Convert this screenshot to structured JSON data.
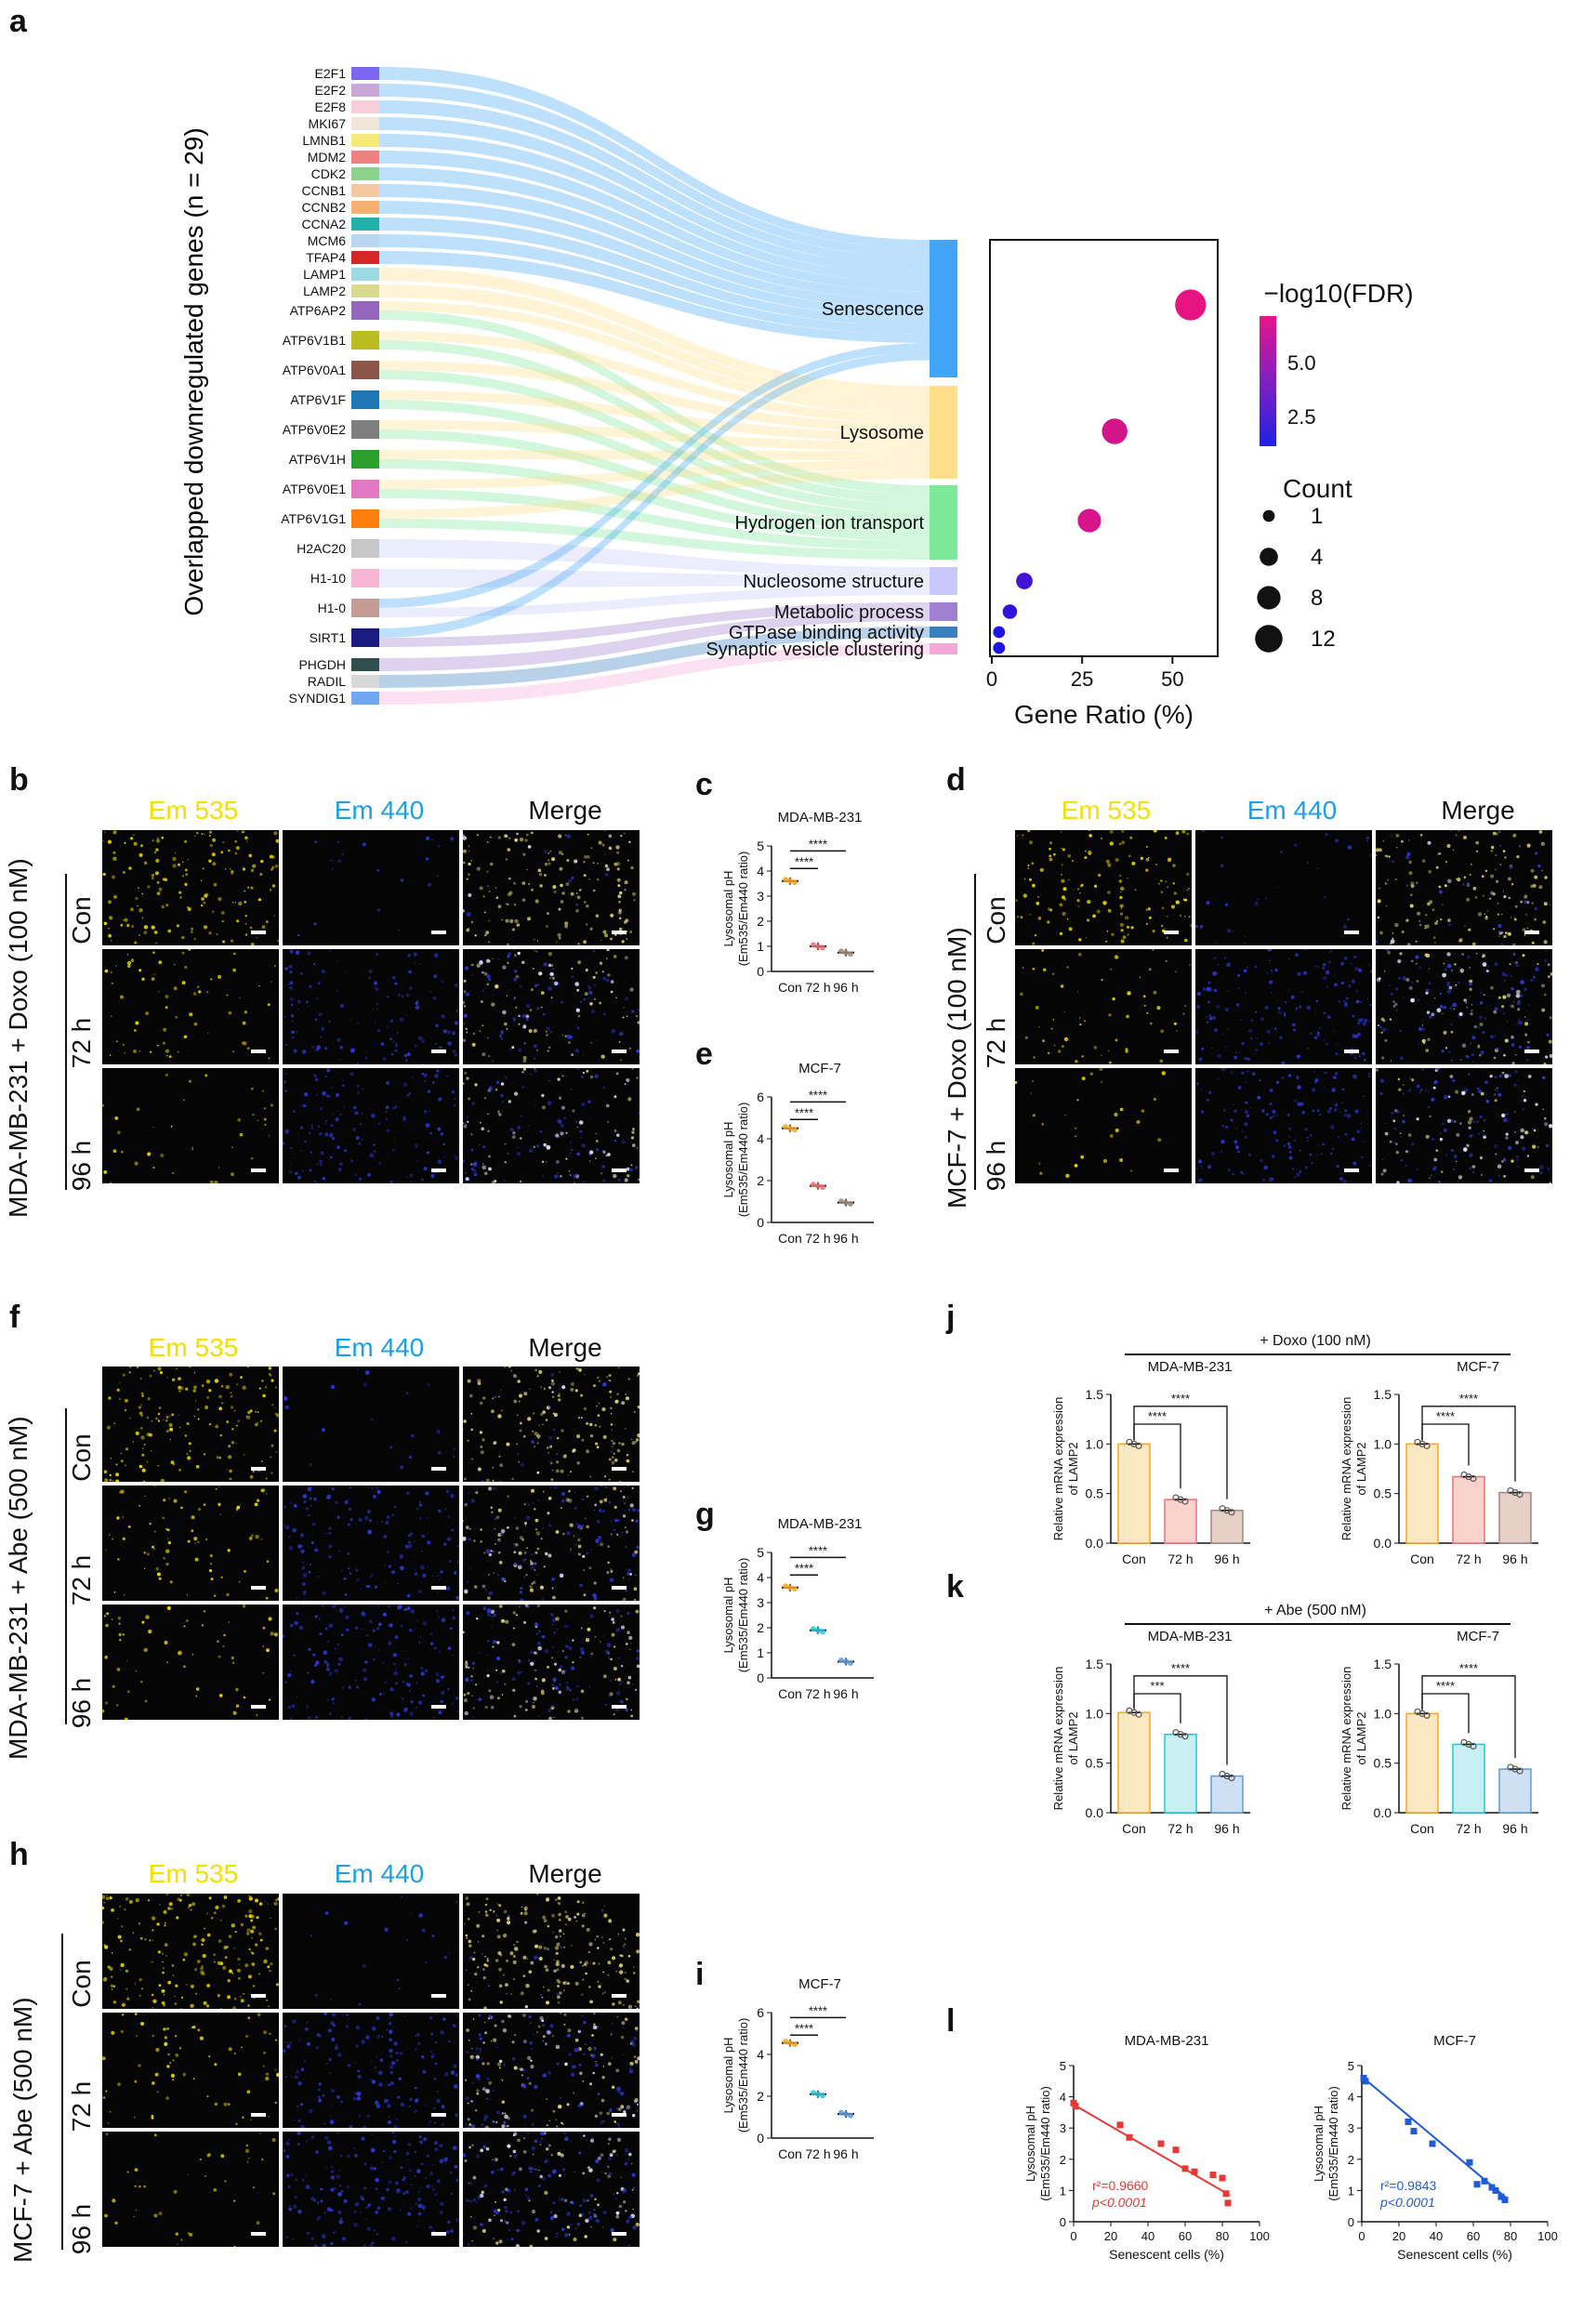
{
  "panel_labels": {
    "a": "a",
    "b": "b",
    "c": "c",
    "d": "d",
    "e": "e",
    "f": "f",
    "g": "g",
    "h": "h",
    "i": "i",
    "j": "j",
    "k": "k",
    "l": "l"
  },
  "channels": [
    "Em 535",
    "Em 440",
    "Merge"
  ],
  "rows": [
    "Con",
    "72 h",
    "96 h"
  ],
  "panel_a": {
    "ylabel": "Overlapped downregulated genes (n = 29)",
    "genes": [
      "E2F1",
      "E2F2",
      "E2F8",
      "MKI67",
      "LMNB1",
      "MDM2",
      "CDK2",
      "CCNB1",
      "CCNB2",
      "CCNA2",
      "MCM6",
      "TFAP4",
      "LAMP1",
      "LAMP2",
      "ATP6AP2",
      "ATP6V1B1",
      "ATP6V0A1",
      "ATP6V1F",
      "ATP6V0E2",
      "ATP6V1H",
      "ATP6V0E1",
      "ATP6V1G1",
      "H2AC20",
      "H1-10",
      "H1-0",
      "SIRT1",
      "PHGDH",
      "RADIL",
      "SYNDIG1"
    ],
    "gene_colors": [
      "#7b68ee",
      "#c9a8d8",
      "#f6cfd8",
      "#f2e6d8",
      "#f6e87a",
      "#f08080",
      "#8ed18c",
      "#f6c8a0",
      "#f6b070",
      "#20b2aa",
      "#b8d8f0",
      "#d62728",
      "#9edae5",
      "#dbdb8d",
      "#9467bd",
      "#bcbd22",
      "#8c564b",
      "#1f77b4",
      "#7f7f7f",
      "#2ca02c",
      "#e377c2",
      "#ff7f0e",
      "#c7c7c7",
      "#f7b6d2",
      "#c49c94",
      "#1a1a80",
      "#2f4f4f",
      "#d8d8d8",
      "#6fa8f0"
    ],
    "pathways": [
      "Senescence",
      "Lysosome",
      "Hydrogen ion transport",
      "Nucleosome structure",
      "Metabolic process",
      "GTPase binding activity",
      "Synaptic vesicle clustering"
    ],
    "pathway_colors": [
      "#42a5f5",
      "#ffe08a",
      "#7ee89a",
      "#c8c8ff",
      "#a080d0",
      "#3a7fc0",
      "#f4a8d8"
    ]
  },
  "chart_data": [
    {
      "type": "scatter",
      "panel": "a-dotplot",
      "xlabel": "Gene Ratio (%)",
      "xticks": [
        0,
        25,
        50
      ],
      "xlim": [
        0,
        62
      ],
      "categories": [
        "Senescence",
        "Lysosome",
        "Hydrogen ion transport",
        "Nucleosome structure",
        "Metabolic process",
        "GTPase binding activity",
        "Synaptic vesicle clustering"
      ],
      "gene_ratio": [
        55,
        34,
        27,
        9,
        5,
        2,
        2
      ],
      "count": [
        16,
        10,
        8,
        3,
        2,
        1,
        1
      ],
      "neg_log10_fdr": [
        7.0,
        6.5,
        6.6,
        2.5,
        2.0,
        1.5,
        1.5
      ],
      "color_title": "−log10(FDR)",
      "color_ticks": [
        "5.0",
        "2.5"
      ],
      "size_title": "Count",
      "size_legend": [
        "1",
        "4",
        "8",
        "12"
      ]
    },
    {
      "type": "scatter-dot",
      "panel": "c",
      "title": "MDA-MB-231",
      "ylabel": "Lysosomal pH\n(Em535/Em440 ratio)",
      "ylim": [
        0,
        5
      ],
      "yticks": [
        0,
        1,
        2,
        3,
        4,
        5
      ],
      "categories": [
        "Con",
        "72 h",
        "96 h"
      ],
      "means": [
        3.6,
        1.0,
        0.75
      ],
      "sig": [
        {
          "from": 0,
          "to": 1,
          "label": "****"
        },
        {
          "from": 0,
          "to": 2,
          "label": "****"
        }
      ],
      "colors": [
        "#f5a623",
        "#e57373",
        "#a1887f"
      ]
    },
    {
      "type": "scatter-dot",
      "panel": "e",
      "title": "MCF-7",
      "ylabel": "Lysosomal pH\n(Em535/Em440 ratio)",
      "ylim": [
        0,
        6
      ],
      "yticks": [
        0,
        2,
        4,
        6
      ],
      "categories": [
        "Con",
        "72 h",
        "96 h"
      ],
      "means": [
        4.5,
        1.75,
        0.95
      ],
      "sig": [
        {
          "from": 0,
          "to": 1,
          "label": "****"
        },
        {
          "from": 0,
          "to": 2,
          "label": "****"
        }
      ],
      "colors": [
        "#f5a623",
        "#e57373",
        "#a1887f"
      ]
    },
    {
      "type": "scatter-dot",
      "panel": "g",
      "title": "MDA-MB-231",
      "ylabel": "Lysosomal pH\n(Em535/Em440 ratio)",
      "ylim": [
        0,
        5
      ],
      "yticks": [
        0,
        1,
        2,
        3,
        4,
        5
      ],
      "categories": [
        "Con",
        "72 h",
        "96 h"
      ],
      "means": [
        3.6,
        1.9,
        0.65
      ],
      "sig": [
        {
          "from": 0,
          "to": 1,
          "label": "****"
        },
        {
          "from": 0,
          "to": 2,
          "label": "****"
        }
      ],
      "colors": [
        "#f5a623",
        "#26c6da",
        "#5c9bd5"
      ]
    },
    {
      "type": "scatter-dot",
      "panel": "i",
      "title": "MCF-7",
      "ylabel": "Lysosomal pH\n(Em535/Em440 ratio)",
      "ylim": [
        0,
        6
      ],
      "yticks": [
        0,
        2,
        4,
        6
      ],
      "categories": [
        "Con",
        "72 h",
        "96 h"
      ],
      "means": [
        4.55,
        2.1,
        1.15
      ],
      "sig": [
        {
          "from": 0,
          "to": 1,
          "label": "****"
        },
        {
          "from": 0,
          "to": 2,
          "label": "****"
        }
      ],
      "colors": [
        "#f5a623",
        "#26c6da",
        "#5c9bd5"
      ]
    },
    {
      "type": "bar",
      "panel": "j-left",
      "title": "MDA-MB-231",
      "ylabel": "Relative mRNA expression\nof LAMP2",
      "ylim": [
        0,
        1.5
      ],
      "yticks": [
        "0.0",
        "0.5",
        "1.0",
        "1.5"
      ],
      "categories": [
        "Con",
        "72 h",
        "96 h"
      ],
      "values": [
        1.0,
        0.44,
        0.33
      ],
      "sig": [
        {
          "from": 0,
          "to": 1,
          "label": "****"
        },
        {
          "from": 0,
          "to": 2,
          "label": "****"
        }
      ],
      "fill": [
        "#fde8c4",
        "#fad4cc",
        "#e8d0c8"
      ],
      "stroke": [
        "#f5a623",
        "#e57373",
        "#a1887f"
      ]
    },
    {
      "type": "bar",
      "panel": "j-right",
      "title": "MCF-7",
      "ylabel": "Relative mRNA expression\nof LAMP2",
      "ylim": [
        0,
        1.5
      ],
      "yticks": [
        "0.0",
        "0.5",
        "1.0",
        "1.5"
      ],
      "categories": [
        "Con",
        "72 h",
        "96 h"
      ],
      "values": [
        1.0,
        0.67,
        0.51
      ],
      "sig": [
        {
          "from": 0,
          "to": 1,
          "label": "****"
        },
        {
          "from": 0,
          "to": 2,
          "label": "****"
        }
      ],
      "fill": [
        "#fde8c4",
        "#fad4cc",
        "#e8d0c8"
      ],
      "stroke": [
        "#f5a623",
        "#e57373",
        "#a1887f"
      ]
    },
    {
      "type": "bar",
      "panel": "k-left",
      "title": "MDA-MB-231",
      "ylabel": "Relative mRNA expression\nof LAMP2",
      "ylim": [
        0,
        1.5
      ],
      "yticks": [
        "0.0",
        "0.5",
        "1.0",
        "1.5"
      ],
      "categories": [
        "Con",
        "72 h",
        "96 h"
      ],
      "values": [
        1.01,
        0.79,
        0.37
      ],
      "sig": [
        {
          "from": 0,
          "to": 1,
          "label": "***"
        },
        {
          "from": 0,
          "to": 2,
          "label": "****"
        }
      ],
      "fill": [
        "#fde8c4",
        "#c8f0f2",
        "#d0e0f4"
      ],
      "stroke": [
        "#f5a623",
        "#26c6da",
        "#5c9bd5"
      ]
    },
    {
      "type": "bar",
      "panel": "k-right",
      "title": "MCF-7",
      "ylabel": "Relative mRNA expression\nof LAMP2",
      "ylim": [
        0,
        1.5
      ],
      "yticks": [
        "0.0",
        "0.5",
        "1.0",
        "1.5"
      ],
      "categories": [
        "Con",
        "72 h",
        "96 h"
      ],
      "values": [
        1.0,
        0.69,
        0.44
      ],
      "sig": [
        {
          "from": 0,
          "to": 1,
          "label": "****"
        },
        {
          "from": 0,
          "to": 2,
          "label": "****"
        }
      ],
      "fill": [
        "#fde8c4",
        "#c8f0f2",
        "#d0e0f4"
      ],
      "stroke": [
        "#f5a623",
        "#26c6da",
        "#5c9bd5"
      ]
    },
    {
      "type": "scatter",
      "panel": "l-left",
      "title": "MDA-MB-231",
      "xlabel": "Senescent cells (%)",
      "ylabel": "Lysosomal pH\n(Em535/Em440 ratio)",
      "xlim": [
        0,
        100
      ],
      "ylim": [
        0,
        5
      ],
      "xticks": [
        0,
        20,
        40,
        60,
        80,
        100
      ],
      "yticks": [
        0,
        1,
        2,
        3,
        4,
        5
      ],
      "x": [
        0,
        1,
        25,
        30,
        47,
        55,
        60,
        65,
        75,
        80,
        82,
        83
      ],
      "y": [
        3.8,
        3.7,
        3.1,
        2.7,
        2.5,
        2.3,
        1.7,
        1.6,
        1.5,
        1.4,
        0.9,
        0.6
      ],
      "fit": {
        "x0": 0,
        "y0": 3.75,
        "x1": 84,
        "y1": 0.85
      },
      "annotation": {
        "r2": "r²=0.9660",
        "p": "p<0.0001"
      },
      "color": "#e53935"
    },
    {
      "type": "scatter",
      "panel": "l-right",
      "title": "MCF-7",
      "xlabel": "Senescent cells (%)",
      "ylabel": "Lysosomal pH\n(Em535/Em440 ratio)",
      "xlim": [
        0,
        100
      ],
      "ylim": [
        0,
        5
      ],
      "xticks": [
        0,
        20,
        40,
        60,
        80,
        100
      ],
      "yticks": [
        0,
        1,
        2,
        3,
        4,
        5
      ],
      "x": [
        1,
        2,
        25,
        28,
        38,
        58,
        62,
        66,
        70,
        72,
        75,
        77
      ],
      "y": [
        4.6,
        4.5,
        3.2,
        2.9,
        2.5,
        1.9,
        1.2,
        1.3,
        1.1,
        1.0,
        0.8,
        0.7
      ],
      "fit": {
        "x0": 0,
        "y0": 4.65,
        "x1": 78,
        "y1": 0.75
      },
      "annotation": {
        "r2": "r²=0.9843",
        "p": "p<0.0001"
      },
      "color": "#1e5bd8"
    }
  ],
  "panel_b": {
    "row_title": "MDA-MB-231 + Doxo (100 nM)"
  },
  "panel_d": {
    "row_title": "MCF-7 + Doxo (100 nM)"
  },
  "panel_f": {
    "row_title": "MDA-MB-231 + Abe (500 nM)"
  },
  "panel_h": {
    "row_title": "MCF-7 + Abe (500 nM)"
  },
  "panel_j": {
    "treatment": "+ Doxo (100 nM)"
  },
  "panel_k": {
    "treatment": "+ Abe (500 nM)"
  }
}
